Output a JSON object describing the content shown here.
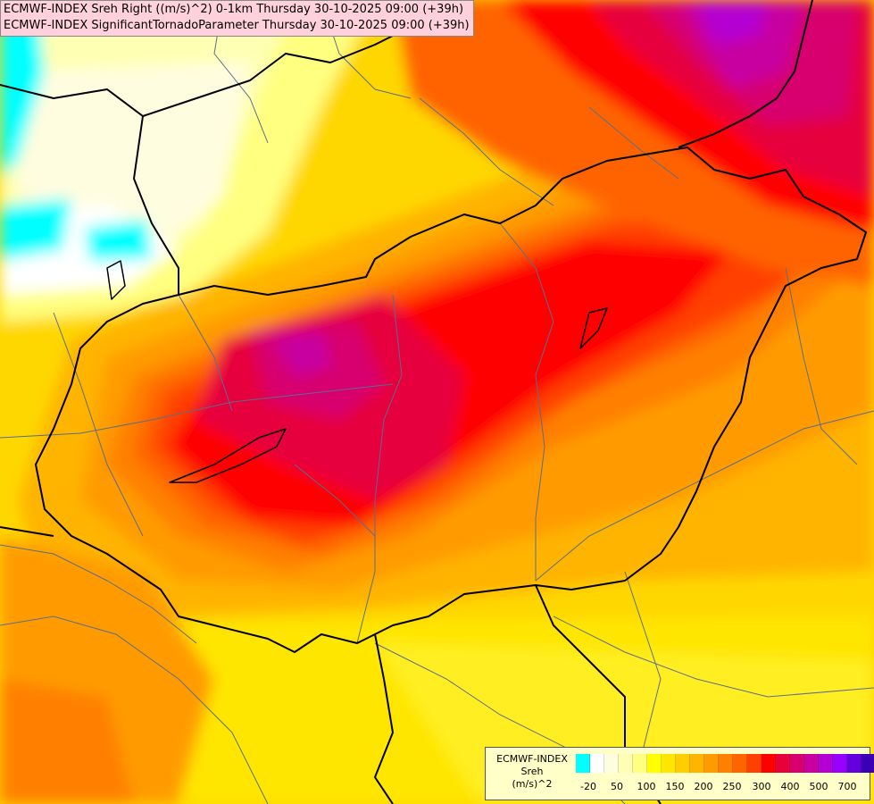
{
  "map": {
    "header": {
      "line1": "ECMWF-INDEX Sreh Right ((m/s)^2) 0-1km Thursday 30-10-2025 09:00 (+39h)",
      "line2": "ECMWF-INDEX SignificantTornadoParameter Thursday 30-10-2025 09:00 (+39h)"
    },
    "legend": {
      "line1": "ECMWF-INDEX",
      "line2": "Sreh",
      "line3": "(m/s)^2",
      "swatch_colors": [
        "#00ffff",
        "#ffffff",
        "#fffde0",
        "#ffffb4",
        "#ffff80",
        "#ffff00",
        "#ffe600",
        "#ffcd00",
        "#ffb400",
        "#ff9b00",
        "#ff8000",
        "#ff6400",
        "#ff4000",
        "#ff0000",
        "#e6003c",
        "#d7006e",
        "#c800a0",
        "#b400d2",
        "#9600ff",
        "#6400dc",
        "#3c00b4",
        "#00008c"
      ],
      "ticks": [
        "-20",
        "50",
        "100",
        "150",
        "200",
        "250",
        "300",
        "400",
        "500",
        "700"
      ]
    },
    "colors": {
      "background": "#ffd700",
      "border": "#000000",
      "river": "#5a6e8c",
      "title_bg": "#ffd1dc",
      "legend_bg": "#ffffc8"
    }
  }
}
